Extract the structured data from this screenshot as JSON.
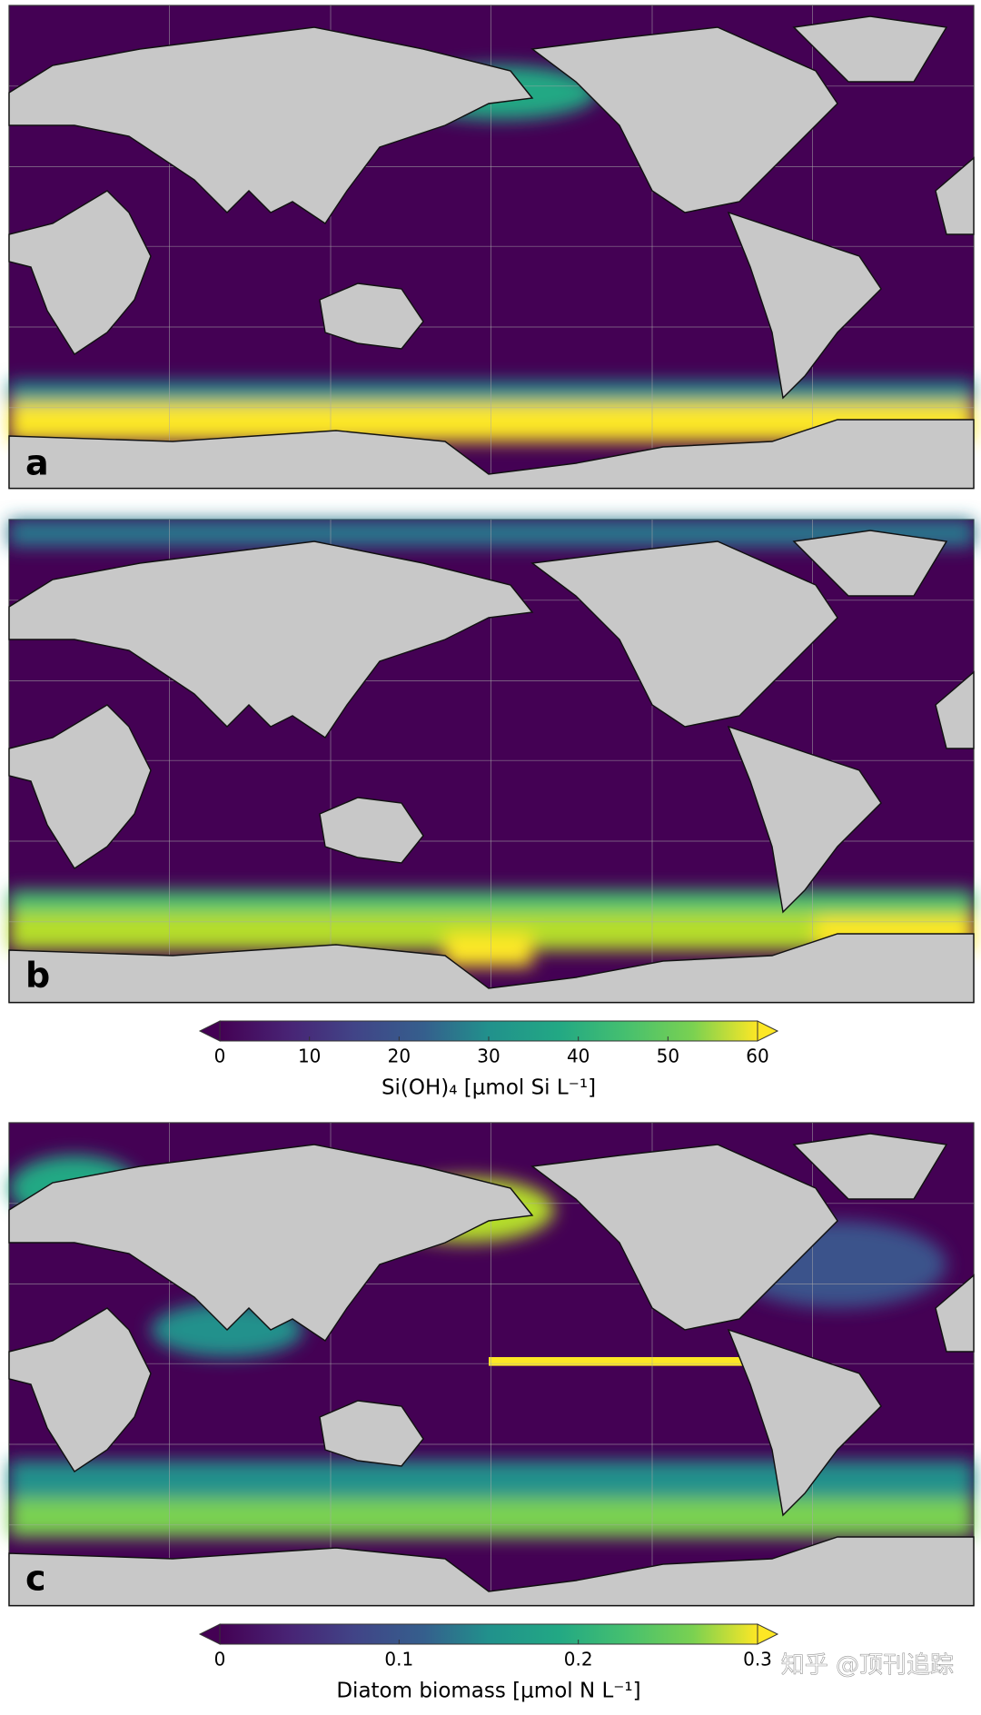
{
  "panels": [
    {
      "label": "a"
    },
    {
      "label": "b"
    },
    {
      "label": "c"
    }
  ],
  "colorbars": [
    {
      "label": "Si(OH)₄ [μmol Si L⁻¹]",
      "lim": [
        0,
        60
      ],
      "ticks": [
        0,
        10,
        20,
        30,
        40,
        50,
        60
      ]
    },
    {
      "label": "Diatom biomass [μmol N L⁻¹]",
      "lim": [
        0,
        0.3
      ],
      "ticks": [
        0,
        0.1,
        0.2,
        0.3
      ]
    }
  ],
  "watermark": "知乎 @顶刊追踪"
}
